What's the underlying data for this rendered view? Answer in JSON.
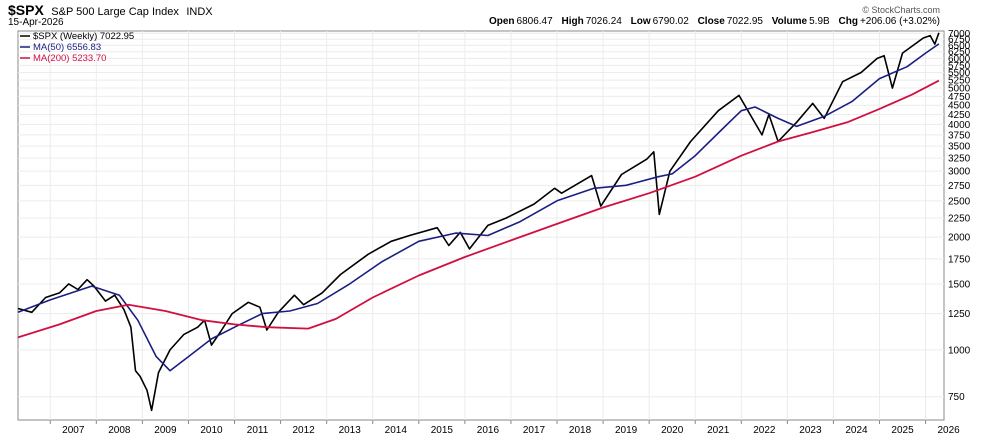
{
  "header": {
    "symbol": "$SPX",
    "description": "S&P 500 Large Cap Index",
    "exchange": "INDX",
    "date": "15-Apr-2026",
    "watermark": "© StockCharts.com",
    "quote": {
      "open_label": "Open",
      "open": "6806.47",
      "high_label": "High",
      "high": "7026.24",
      "low_label": "Low",
      "low": "6790.02",
      "close_label": "Close",
      "close": "7022.95",
      "volume_label": "Volume",
      "volume": "5.9B",
      "chg_label": "Chg",
      "chg": "+206.06 (+3.02%)"
    }
  },
  "legend": {
    "price": "$SPX (Weekly) 7022.95",
    "ma50": "MA(50) 6556.83",
    "ma200": "MA(200) 5233.70"
  },
  "colors": {
    "price": "#000000",
    "ma50": "#1a1f80",
    "ma200": "#d01040"
  },
  "chart_data": {
    "type": "line",
    "scale": "log",
    "title": "$SPX S&P 500 Large Cap Index INDX",
    "x_ticks": [
      "2007",
      "2008",
      "2009",
      "2010",
      "2011",
      "2012",
      "2013",
      "2014",
      "2015",
      "2016",
      "2017",
      "2018",
      "2019",
      "2020",
      "2021",
      "2022",
      "2023",
      "2024",
      "2025",
      "2026"
    ],
    "y_ticks": [
      7000,
      6750,
      6500,
      6250,
      6000,
      5750,
      5500,
      5250,
      5000,
      4750,
      4500,
      4250,
      4000,
      3750,
      3500,
      3250,
      3000,
      2750,
      2500,
      2250,
      2000,
      1750,
      1500,
      1250,
      1000,
      750
    ],
    "ylim": [
      650,
      7100
    ],
    "xlim": [
      2006.3,
      2026.4
    ],
    "series": [
      {
        "name": "$SPX (Weekly)",
        "points": [
          [
            2006.3,
            1290
          ],
          [
            2006.6,
            1260
          ],
          [
            2006.9,
            1380
          ],
          [
            2007.2,
            1420
          ],
          [
            2007.4,
            1500
          ],
          [
            2007.6,
            1450
          ],
          [
            2007.8,
            1540
          ],
          [
            2007.95,
            1480
          ],
          [
            2008.2,
            1350
          ],
          [
            2008.4,
            1400
          ],
          [
            2008.6,
            1280
          ],
          [
            2008.75,
            1150
          ],
          [
            2008.85,
            880
          ],
          [
            2008.95,
            850
          ],
          [
            2009.1,
            780
          ],
          [
            2009.2,
            690
          ],
          [
            2009.35,
            870
          ],
          [
            2009.6,
            1000
          ],
          [
            2009.9,
            1100
          ],
          [
            2010.2,
            1150
          ],
          [
            2010.35,
            1200
          ],
          [
            2010.5,
            1030
          ],
          [
            2010.7,
            1120
          ],
          [
            2010.95,
            1250
          ],
          [
            2011.3,
            1340
          ],
          [
            2011.55,
            1300
          ],
          [
            2011.7,
            1130
          ],
          [
            2011.95,
            1260
          ],
          [
            2012.3,
            1400
          ],
          [
            2012.5,
            1320
          ],
          [
            2012.9,
            1420
          ],
          [
            2013.3,
            1590
          ],
          [
            2013.9,
            1800
          ],
          [
            2014.4,
            1950
          ],
          [
            2014.8,
            2020
          ],
          [
            2015.4,
            2120
          ],
          [
            2015.65,
            1900
          ],
          [
            2015.9,
            2060
          ],
          [
            2016.1,
            1860
          ],
          [
            2016.5,
            2150
          ],
          [
            2016.9,
            2250
          ],
          [
            2017.5,
            2450
          ],
          [
            2017.95,
            2700
          ],
          [
            2018.1,
            2620
          ],
          [
            2018.75,
            2920
          ],
          [
            2018.95,
            2420
          ],
          [
            2019.4,
            2940
          ],
          [
            2019.95,
            3230
          ],
          [
            2020.1,
            3380
          ],
          [
            2020.22,
            2300
          ],
          [
            2020.45,
            3000
          ],
          [
            2020.9,
            3600
          ],
          [
            2021.5,
            4350
          ],
          [
            2021.95,
            4780
          ],
          [
            2022.45,
            3750
          ],
          [
            2022.6,
            4250
          ],
          [
            2022.8,
            3600
          ],
          [
            2023.2,
            4050
          ],
          [
            2023.55,
            4550
          ],
          [
            2023.8,
            4150
          ],
          [
            2024.2,
            5200
          ],
          [
            2024.6,
            5500
          ],
          [
            2024.95,
            6000
          ],
          [
            2025.1,
            6100
          ],
          [
            2025.28,
            5000
          ],
          [
            2025.5,
            6200
          ],
          [
            2025.95,
            6800
          ],
          [
            2026.1,
            6900
          ],
          [
            2026.2,
            6550
          ],
          [
            2026.29,
            7023
          ]
        ]
      },
      {
        "name": "MA(50)",
        "points": [
          [
            2006.3,
            1260
          ],
          [
            2007.0,
            1360
          ],
          [
            2007.9,
            1480
          ],
          [
            2008.5,
            1400
          ],
          [
            2008.9,
            1200
          ],
          [
            2009.3,
            960
          ],
          [
            2009.6,
            880
          ],
          [
            2010.0,
            960
          ],
          [
            2010.5,
            1070
          ],
          [
            2011.0,
            1150
          ],
          [
            2011.6,
            1250
          ],
          [
            2012.2,
            1270
          ],
          [
            2012.8,
            1330
          ],
          [
            2013.5,
            1500
          ],
          [
            2014.2,
            1720
          ],
          [
            2015.0,
            1950
          ],
          [
            2015.8,
            2050
          ],
          [
            2016.5,
            2020
          ],
          [
            2017.2,
            2200
          ],
          [
            2018.0,
            2500
          ],
          [
            2018.8,
            2700
          ],
          [
            2019.5,
            2750
          ],
          [
            2020.2,
            2900
          ],
          [
            2020.5,
            2950
          ],
          [
            2021.0,
            3300
          ],
          [
            2021.6,
            3900
          ],
          [
            2022.0,
            4350
          ],
          [
            2022.3,
            4450
          ],
          [
            2022.8,
            4150
          ],
          [
            2023.2,
            3950
          ],
          [
            2023.8,
            4200
          ],
          [
            2024.4,
            4600
          ],
          [
            2025.0,
            5300
          ],
          [
            2025.6,
            5700
          ],
          [
            2026.0,
            6200
          ],
          [
            2026.29,
            6557
          ]
        ]
      },
      {
        "name": "MA(200)",
        "points": [
          [
            2006.3,
            1080
          ],
          [
            2007.2,
            1170
          ],
          [
            2008.0,
            1270
          ],
          [
            2008.7,
            1320
          ],
          [
            2009.5,
            1270
          ],
          [
            2010.3,
            1200
          ],
          [
            2011.0,
            1170
          ],
          [
            2011.7,
            1150
          ],
          [
            2012.6,
            1140
          ],
          [
            2013.2,
            1210
          ],
          [
            2014.0,
            1380
          ],
          [
            2015.0,
            1580
          ],
          [
            2016.0,
            1770
          ],
          [
            2017.0,
            1960
          ],
          [
            2018.0,
            2170
          ],
          [
            2019.0,
            2400
          ],
          [
            2020.0,
            2620
          ],
          [
            2021.0,
            2900
          ],
          [
            2022.0,
            3300
          ],
          [
            2022.8,
            3600
          ],
          [
            2023.5,
            3800
          ],
          [
            2024.3,
            4050
          ],
          [
            2025.0,
            4400
          ],
          [
            2025.7,
            4800
          ],
          [
            2026.29,
            5234
          ]
        ]
      }
    ]
  }
}
